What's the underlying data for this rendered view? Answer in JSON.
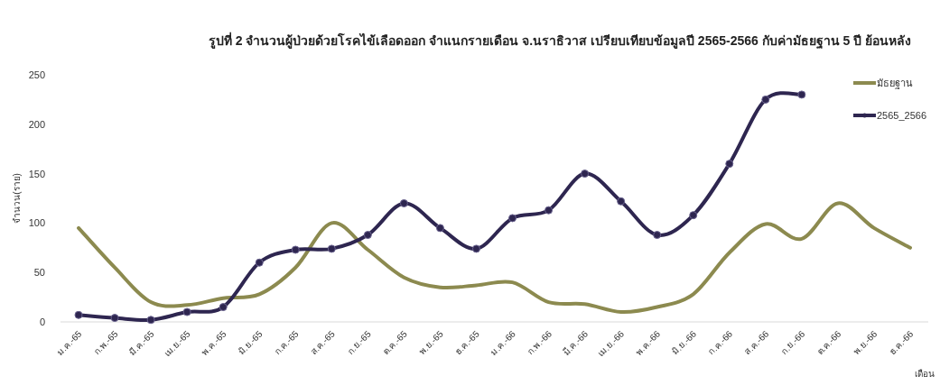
{
  "chart_data": {
    "type": "line",
    "title": "รูปที่ 2 จำนวนผู้ป่วยด้วยโรคไข้เลือดออก จำแนกรายเดือน จ.นราธิวาส  เปรียบเทียบข้อมูลปี 2565-2566 กับค่ามัธยฐาน 5 ปี ย้อนหลัง",
    "xlabel": "เดือน",
    "ylabel": "จำนวน(ราย)",
    "categories": [
      "ม.ค.-65",
      "ก.พ.-65",
      "มี.ค.-65",
      "เม.ย.-65",
      "พ.ค.-65",
      "มิ.ย.-65",
      "ก.ค.-65",
      "ส.ค.-65",
      "ก.ย.-65",
      "ต.ค.-65",
      "พ.ย.-65",
      "ธ.ค.-65",
      "ม.ค.-66",
      "ก.พ.-66",
      "มี.ค.-66",
      "เม.ย.-66",
      "พ.ค.-66",
      "มิ.ย.-66",
      "ก.ค.-66",
      "ส.ค.-66",
      "ก.ย.-66",
      "ต.ค.-66",
      "พ.ย.-66",
      "ธ.ค.-66"
    ],
    "series": [
      {
        "name": "มัธยฐาน",
        "color": "#8c8a4f",
        "marker": "none",
        "values": [
          95,
          55,
          20,
          17,
          24,
          28,
          55,
          100,
          73,
          45,
          35,
          37,
          40,
          20,
          18,
          10,
          15,
          28,
          70,
          99,
          84,
          120,
          95,
          75
        ]
      },
      {
        "name": "2565_2566",
        "color": "#2e2650",
        "marker": "circle",
        "values": [
          7,
          4,
          2,
          10,
          15,
          60,
          73,
          74,
          88,
          120,
          95,
          74,
          105,
          113,
          150,
          122,
          88,
          108,
          160,
          225,
          230,
          null,
          null,
          null
        ]
      }
    ],
    "ylim": [
      0,
      250
    ],
    "yticks": [
      0,
      50,
      100,
      150,
      200,
      250
    ],
    "grid": false,
    "legend": "top right"
  }
}
